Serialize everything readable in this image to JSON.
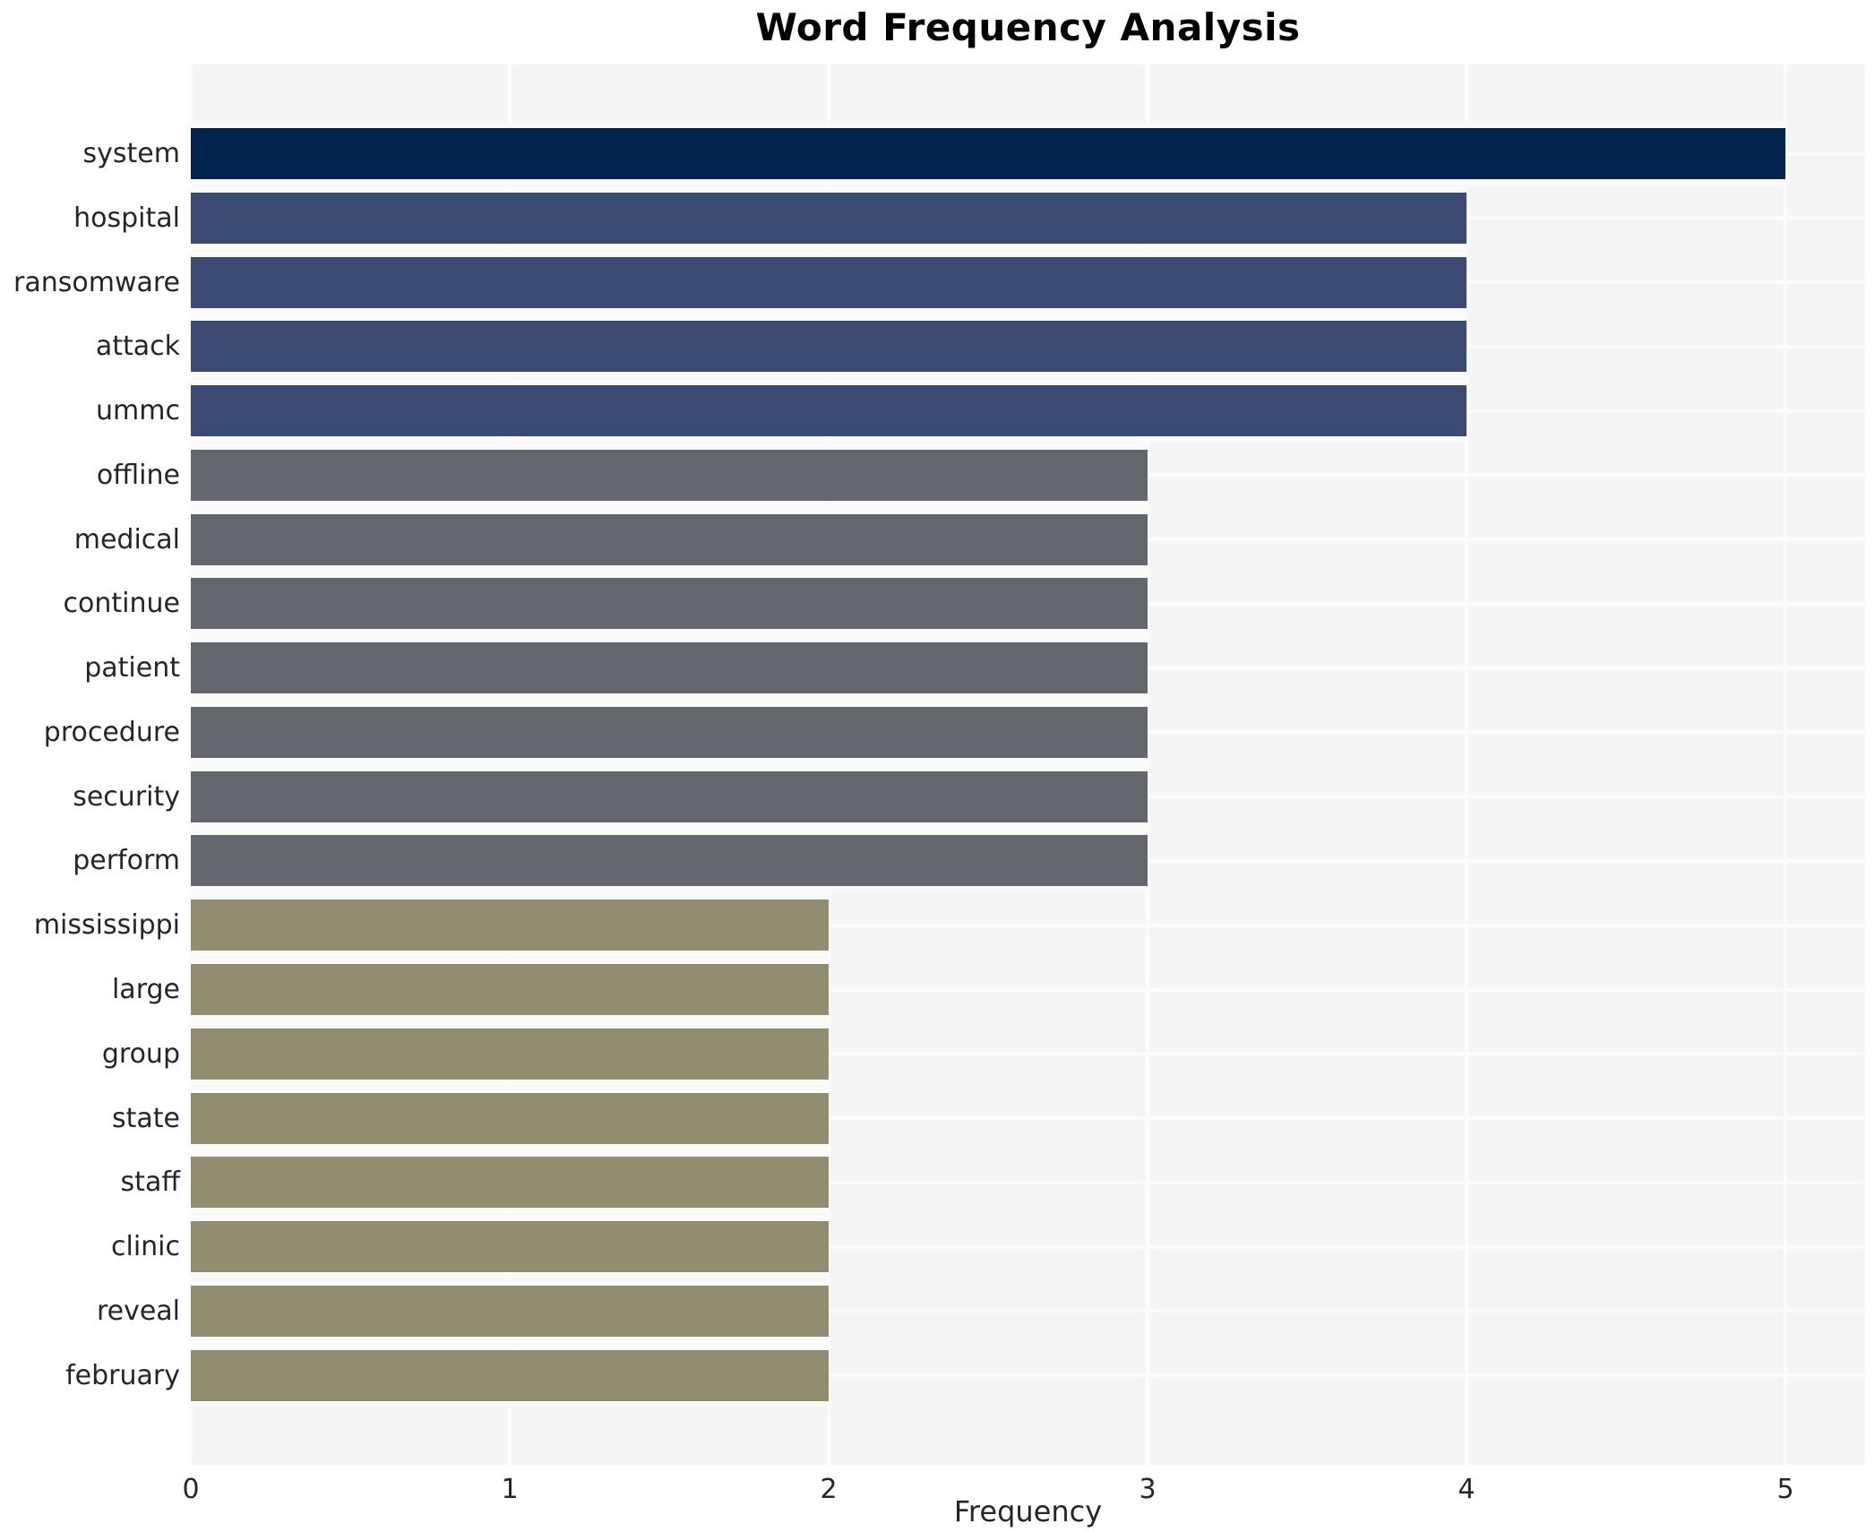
{
  "chart_data": {
    "type": "bar",
    "orientation": "horizontal",
    "title": "Word Frequency Analysis",
    "xlabel": "Frequency",
    "ylabel": "",
    "categories": [
      "system",
      "hospital",
      "ransomware",
      "attack",
      "ummc",
      "offline",
      "medical",
      "continue",
      "patient",
      "procedure",
      "security",
      "perform",
      "mississippi",
      "large",
      "group",
      "state",
      "staff",
      "clinic",
      "reveal",
      "february"
    ],
    "values": [
      5,
      4,
      4,
      4,
      4,
      3,
      3,
      3,
      3,
      3,
      3,
      3,
      2,
      2,
      2,
      2,
      2,
      2,
      2,
      2
    ],
    "x_ticks": [
      0,
      1,
      2,
      3,
      4,
      5
    ],
    "xlim": [
      0,
      5.25
    ],
    "grid": true,
    "legend": false,
    "colors_by_value": {
      "5": "#03234f",
      "4": "#3a4a72",
      "3": "#64676e",
      "2": "#938d70"
    },
    "panel_bg": "#f5f5f6",
    "gridline_color": "#fcfcfc",
    "bar_edge_color": "#fafafa",
    "text_color": "#262626"
  }
}
